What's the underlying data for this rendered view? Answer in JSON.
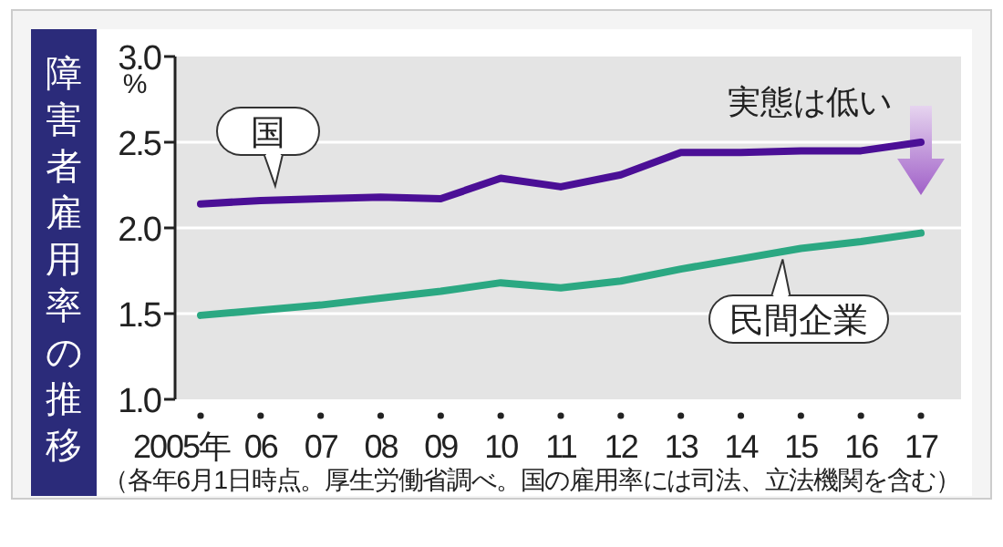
{
  "chart_data": {
    "type": "line",
    "title": "障害者雇用率の推移",
    "ylabel": "%",
    "categories": [
      "2005年",
      "06",
      "07",
      "08",
      "09",
      "10",
      "11",
      "12",
      "13",
      "14",
      "15",
      "16",
      "17"
    ],
    "series": [
      {
        "name": "国",
        "color": "#4b0f96",
        "values": [
          2.14,
          2.16,
          2.17,
          2.18,
          2.17,
          2.29,
          2.24,
          2.31,
          2.44,
          2.44,
          2.45,
          2.45,
          2.5
        ]
      },
      {
        "name": "民間企業",
        "color": "#2ba882",
        "values": [
          1.49,
          1.52,
          1.55,
          1.59,
          1.63,
          1.68,
          1.65,
          1.69,
          1.76,
          1.82,
          1.88,
          1.92,
          1.97
        ]
      }
    ],
    "ylim": [
      1.0,
      3.0
    ],
    "yticks": [
      {
        "value": 1.0,
        "label": "1.0"
      },
      {
        "value": 1.5,
        "label": "1.5"
      },
      {
        "value": 2.0,
        "label": "2.0"
      },
      {
        "value": 2.5,
        "label": "2.5"
      },
      {
        "value": 3.0,
        "label": "3.0"
      }
    ],
    "grid": "y",
    "marker": "none",
    "line_style": "solid",
    "annotations": [
      {
        "text": "実態は低い",
        "x": "17",
        "y": 2.5
      },
      "（各年6月1日時点。厚生労働省調べ。国の雇用率には司法、立法機関を含む）"
    ]
  }
}
